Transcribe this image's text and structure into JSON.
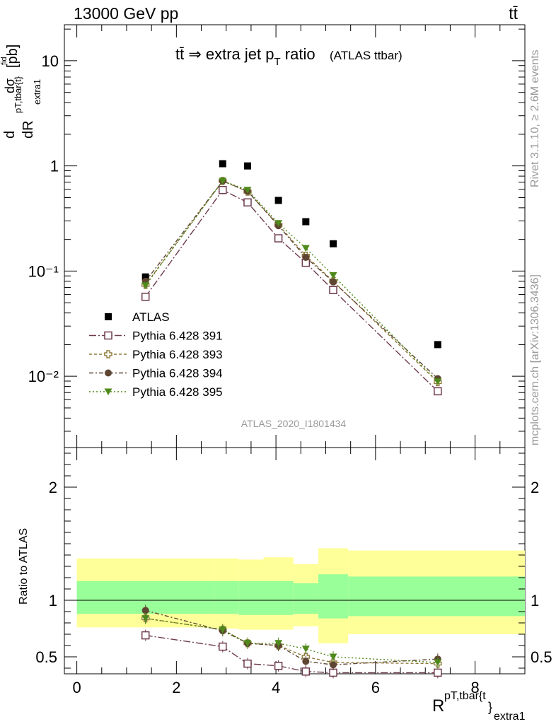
{
  "header": {
    "energy_label": "13000 GeV pp",
    "process_label": "tt̄"
  },
  "title": {
    "main": "tt̄ ⇒ extra jet p",
    "sub": "T",
    "tail": " ratio",
    "paren": "(ATLAS ttbar)"
  },
  "side_text": {
    "rivet": "Rivet 3.1.10, ≥ 2.6M events",
    "mcplots": "mcplots.cern.ch [arXiv:1306.3436]"
  },
  "analysis_id": "ATLAS_2020_I1801434",
  "ylabel_top": {
    "d": "d",
    "dsigma": "dσ",
    "fid": "fid",
    "dR": "dR",
    "sup": "pT,tbar{t}",
    "sub": "extra1",
    "unit": "[pb]"
  },
  "ylabel_bottom": "Ratio to ATLAS",
  "xlabel": {
    "R": "R",
    "sup": "pT,tbar{t",
    "brace": "}",
    "sub": "extra1"
  },
  "colors": {
    "atlas": "#000000",
    "p391": "#6e3a4e",
    "p393": "#8e7a3a",
    "p394": "#5e4632",
    "p395": "#4e8a1a",
    "band_outer": "#ffff99",
    "band_inner": "#99ff99"
  },
  "chart_data": [
    {
      "type": "scatter",
      "yscale": "log",
      "xlim": [
        -0.25,
        9.0
      ],
      "ylim": [
        0.0021,
        22
      ],
      "ytick_labels": [
        "10",
        "1",
        "10⁻¹",
        "10⁻²"
      ],
      "x": [
        1.38,
        2.93,
        3.43,
        4.05,
        4.6,
        5.15,
        7.25
      ],
      "series": [
        {
          "name": "ATLAS",
          "marker": "square-filled",
          "values": [
            0.088,
            1.05,
            1.0,
            0.47,
            0.295,
            0.182,
            0.02
          ]
        },
        {
          "name": "Pythia 6.428 391",
          "marker": "square-open",
          "values": [
            0.057,
            0.59,
            0.45,
            0.205,
            0.12,
            0.066,
            0.0072
          ]
        },
        {
          "name": "Pythia 6.428 393",
          "marker": "cross-open",
          "values": [
            0.074,
            0.72,
            0.57,
            0.275,
            0.14,
            0.08,
            0.0088
          ]
        },
        {
          "name": "Pythia 6.428 394",
          "marker": "circle-filled",
          "values": [
            0.08,
            0.72,
            0.575,
            0.27,
            0.135,
            0.079,
            0.0095
          ]
        },
        {
          "name": "Pythia 6.428 395",
          "marker": "triangle-down-filled",
          "values": [
            0.073,
            0.72,
            0.59,
            0.285,
            0.165,
            0.091,
            0.0089
          ]
        }
      ]
    },
    {
      "type": "line",
      "ylabel": "Ratio to ATLAS",
      "xlim": [
        -0.25,
        9.0
      ],
      "ylim": [
        0.35,
        2.35
      ],
      "xticks": [
        0,
        2,
        4,
        6,
        8
      ],
      "yticks": [
        0.5,
        1,
        2
      ],
      "x": [
        1.38,
        2.93,
        3.43,
        4.05,
        4.6,
        5.15,
        7.25
      ],
      "bands": [
        {
          "x0": 0.0,
          "x1": 2.75,
          "inner": [
            0.88,
            1.17
          ],
          "outer": [
            0.76,
            1.37
          ]
        },
        {
          "x0": 2.75,
          "x1": 3.25,
          "inner": [
            0.88,
            1.17
          ],
          "outer": [
            0.75,
            1.37
          ]
        },
        {
          "x0": 3.25,
          "x1": 3.75,
          "inner": [
            0.87,
            1.17
          ],
          "outer": [
            0.74,
            1.36
          ]
        },
        {
          "x0": 3.75,
          "x1": 4.35,
          "inner": [
            0.87,
            1.17
          ],
          "outer": [
            0.74,
            1.38
          ]
        },
        {
          "x0": 4.35,
          "x1": 4.85,
          "inner": [
            0.88,
            1.15
          ],
          "outer": [
            0.77,
            1.32
          ]
        },
        {
          "x0": 4.85,
          "x1": 5.45,
          "inner": [
            0.84,
            1.23
          ],
          "outer": [
            0.62,
            1.46
          ]
        },
        {
          "x0": 5.45,
          "x1": 9.0,
          "inner": [
            0.86,
            1.21
          ],
          "outer": [
            0.7,
            1.44
          ]
        }
      ],
      "series": [
        {
          "name": "Pythia 6.428 391",
          "marker": "square-open",
          "values": [
            0.69,
            0.59,
            0.44,
            0.42,
            0.37,
            0.36,
            0.36
          ]
        },
        {
          "name": "Pythia 6.428 393",
          "marker": "cross-open",
          "values": [
            0.84,
            0.74,
            0.62,
            0.6,
            0.5,
            0.45,
            0.44
          ]
        },
        {
          "name": "Pythia 6.428 394",
          "marker": "circle-filled",
          "values": [
            0.91,
            0.73,
            0.62,
            0.6,
            0.46,
            0.43,
            0.48
          ]
        },
        {
          "name": "Pythia 6.428 395",
          "marker": "triangle-down-filled",
          "values": [
            0.84,
            0.74,
            0.62,
            0.62,
            0.57,
            0.5,
            0.45
          ]
        }
      ]
    }
  ]
}
